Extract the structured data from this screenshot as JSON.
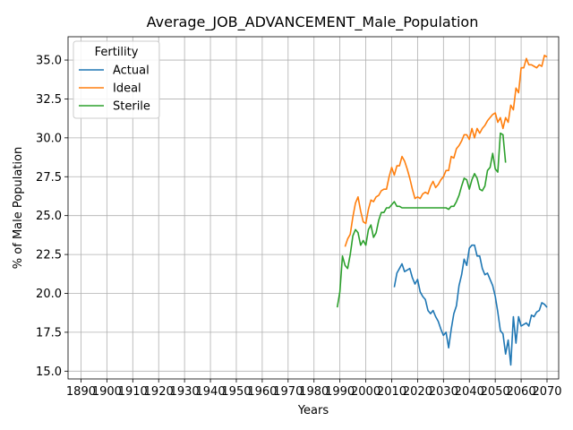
{
  "chart_data": {
    "type": "line",
    "title": "Average_JOB_ADVANCEMENT_Male_Population",
    "xlabel": "Years",
    "ylabel": "% of Male Population",
    "xlim": [
      1885,
      2074.5
    ],
    "ylim": [
      14.5,
      36.5
    ],
    "xticks": [
      1890,
      1900,
      1910,
      1920,
      1930,
      1940,
      1950,
      1960,
      1970,
      1980,
      1990,
      2000,
      2010,
      2020,
      2030,
      2040,
      2050,
      2060,
      2070
    ],
    "xtick_labels": [
      "1890",
      "1900",
      "1910",
      "1920",
      "1930",
      "1940",
      "1950",
      "1960",
      "1970",
      "1980",
      "1990",
      "2000",
      "2010",
      "2020",
      "2030",
      "2040",
      "2050",
      "2060",
      "2070"
    ],
    "yticks": [
      15.0,
      17.5,
      20.0,
      22.5,
      25.0,
      27.5,
      30.0,
      32.5,
      35.0
    ],
    "ytick_labels": [
      "15.0",
      "17.5",
      "20.0",
      "22.5",
      "25.0",
      "27.5",
      "30.0",
      "32.5",
      "35.0"
    ],
    "grid": true,
    "legend": {
      "title": "Fertility",
      "position": "upper-left"
    },
    "series": [
      {
        "name": "Actual",
        "color": "#1f77b4",
        "x": [
          2011,
          2012,
          2013,
          2014,
          2015,
          2016,
          2017,
          2018,
          2019,
          2020,
          2021,
          2022,
          2023,
          2024,
          2025,
          2026,
          2027,
          2028,
          2029,
          2030,
          2031,
          2032,
          2033,
          2034,
          2035,
          2036,
          2037,
          2038,
          2039,
          2040,
          2041,
          2042,
          2043,
          2044,
          2045,
          2046,
          2047,
          2048,
          2049,
          2050,
          2051,
          2052,
          2053,
          2054,
          2055,
          2056,
          2057,
          2058,
          2059,
          2060,
          2061,
          2062,
          2063,
          2064,
          2065,
          2066,
          2067,
          2068,
          2069,
          2070
        ],
        "y": [
          20.4,
          21.3,
          21.6,
          21.9,
          21.4,
          21.5,
          21.6,
          21.0,
          20.6,
          20.9,
          20.1,
          19.8,
          19.6,
          18.9,
          18.7,
          18.9,
          18.5,
          18.2,
          17.7,
          17.3,
          17.5,
          16.5,
          17.7,
          18.7,
          19.2,
          20.5,
          21.2,
          22.2,
          21.8,
          22.9,
          23.1,
          23.1,
          22.4,
          22.4,
          21.6,
          21.2,
          21.3,
          20.9,
          20.5,
          19.8,
          18.8,
          17.6,
          17.4,
          16.1,
          17.0,
          15.4,
          18.5,
          16.8,
          18.5,
          17.9,
          18.0,
          18.1,
          17.9,
          18.6,
          18.5,
          18.8,
          18.9,
          19.4,
          19.3,
          19.1
        ]
      },
      {
        "name": "Ideal",
        "color": "#ff7f0e",
        "x": [
          1992,
          1993,
          1994,
          1995,
          1996,
          1997,
          1998,
          1999,
          2000,
          2001,
          2002,
          2003,
          2004,
          2005,
          2006,
          2007,
          2008,
          2009,
          2010,
          2011,
          2012,
          2013,
          2014,
          2015,
          2016,
          2017,
          2018,
          2019,
          2020,
          2021,
          2022,
          2023,
          2024,
          2025,
          2026,
          2027,
          2028,
          2029,
          2030,
          2031,
          2032,
          2033,
          2034,
          2035,
          2036,
          2037,
          2038,
          2039,
          2040,
          2041,
          2042,
          2043,
          2044,
          2045,
          2046,
          2047,
          2048,
          2049,
          2050,
          2051,
          2052,
          2053,
          2054,
          2055,
          2056,
          2057,
          2058,
          2059,
          2060,
          2061,
          2062,
          2063,
          2064,
          2065,
          2066,
          2067,
          2068,
          2069,
          2070
        ],
        "y": [
          23.0,
          23.5,
          23.8,
          24.9,
          25.8,
          26.2,
          25.3,
          24.6,
          24.5,
          25.4,
          26.0,
          25.9,
          26.2,
          26.3,
          26.6,
          26.7,
          26.7,
          27.5,
          28.1,
          27.6,
          28.2,
          28.2,
          28.8,
          28.5,
          28.0,
          27.4,
          26.7,
          26.1,
          26.2,
          26.1,
          26.4,
          26.5,
          26.4,
          26.9,
          27.2,
          26.8,
          27.0,
          27.3,
          27.5,
          27.9,
          27.9,
          28.8,
          28.7,
          29.3,
          29.5,
          29.8,
          30.2,
          30.2,
          29.9,
          30.6,
          30.0,
          30.6,
          30.3,
          30.6,
          30.8,
          31.1,
          31.3,
          31.5,
          31.6,
          31.0,
          31.3,
          30.6,
          31.3,
          31.0,
          32.1,
          31.8,
          33.2,
          32.9,
          34.5,
          34.5,
          35.1,
          34.7,
          34.7,
          34.6,
          34.5,
          34.7,
          34.6,
          35.3,
          35.2
        ]
      },
      {
        "name": "Sterile",
        "color": "#2ca02c",
        "x": [
          1989,
          1990,
          1991,
          1992,
          1993,
          1994,
          1995,
          1996,
          1997,
          1998,
          1999,
          2000,
          2001,
          2002,
          2003,
          2004,
          2005,
          2006,
          2007,
          2008,
          2009,
          2010,
          2011,
          2012,
          2013,
          2014,
          2015,
          2016,
          2017,
          2018,
          2019,
          2020,
          2021,
          2022,
          2023,
          2024,
          2025,
          2026,
          2027,
          2028,
          2029,
          2030,
          2031,
          2032,
          2033,
          2034,
          2035,
          2036,
          2037,
          2038,
          2039,
          2040,
          2041,
          2042,
          2043,
          2044,
          2045,
          2046,
          2047,
          2048,
          2049,
          2050,
          2051,
          2052,
          2053,
          2054
        ],
        "y": [
          19.1,
          20.1,
          22.4,
          21.8,
          21.6,
          22.5,
          23.7,
          24.1,
          23.9,
          23.1,
          23.4,
          23.1,
          24.1,
          24.4,
          23.6,
          23.9,
          24.7,
          25.2,
          25.2,
          25.5,
          25.5,
          25.7,
          25.9,
          25.6,
          25.6,
          25.5,
          25.5,
          25.5,
          25.5,
          25.5,
          25.5,
          25.5,
          25.5,
          25.5,
          25.5,
          25.5,
          25.5,
          25.5,
          25.5,
          25.5,
          25.5,
          25.5,
          25.5,
          25.4,
          25.6,
          25.6,
          25.9,
          26.3,
          26.9,
          27.4,
          27.3,
          26.7,
          27.3,
          27.7,
          27.4,
          26.7,
          26.6,
          26.9,
          27.9,
          28.1,
          29.0,
          28.0,
          27.8,
          30.3,
          30.2,
          28.4
        ]
      }
    ]
  }
}
